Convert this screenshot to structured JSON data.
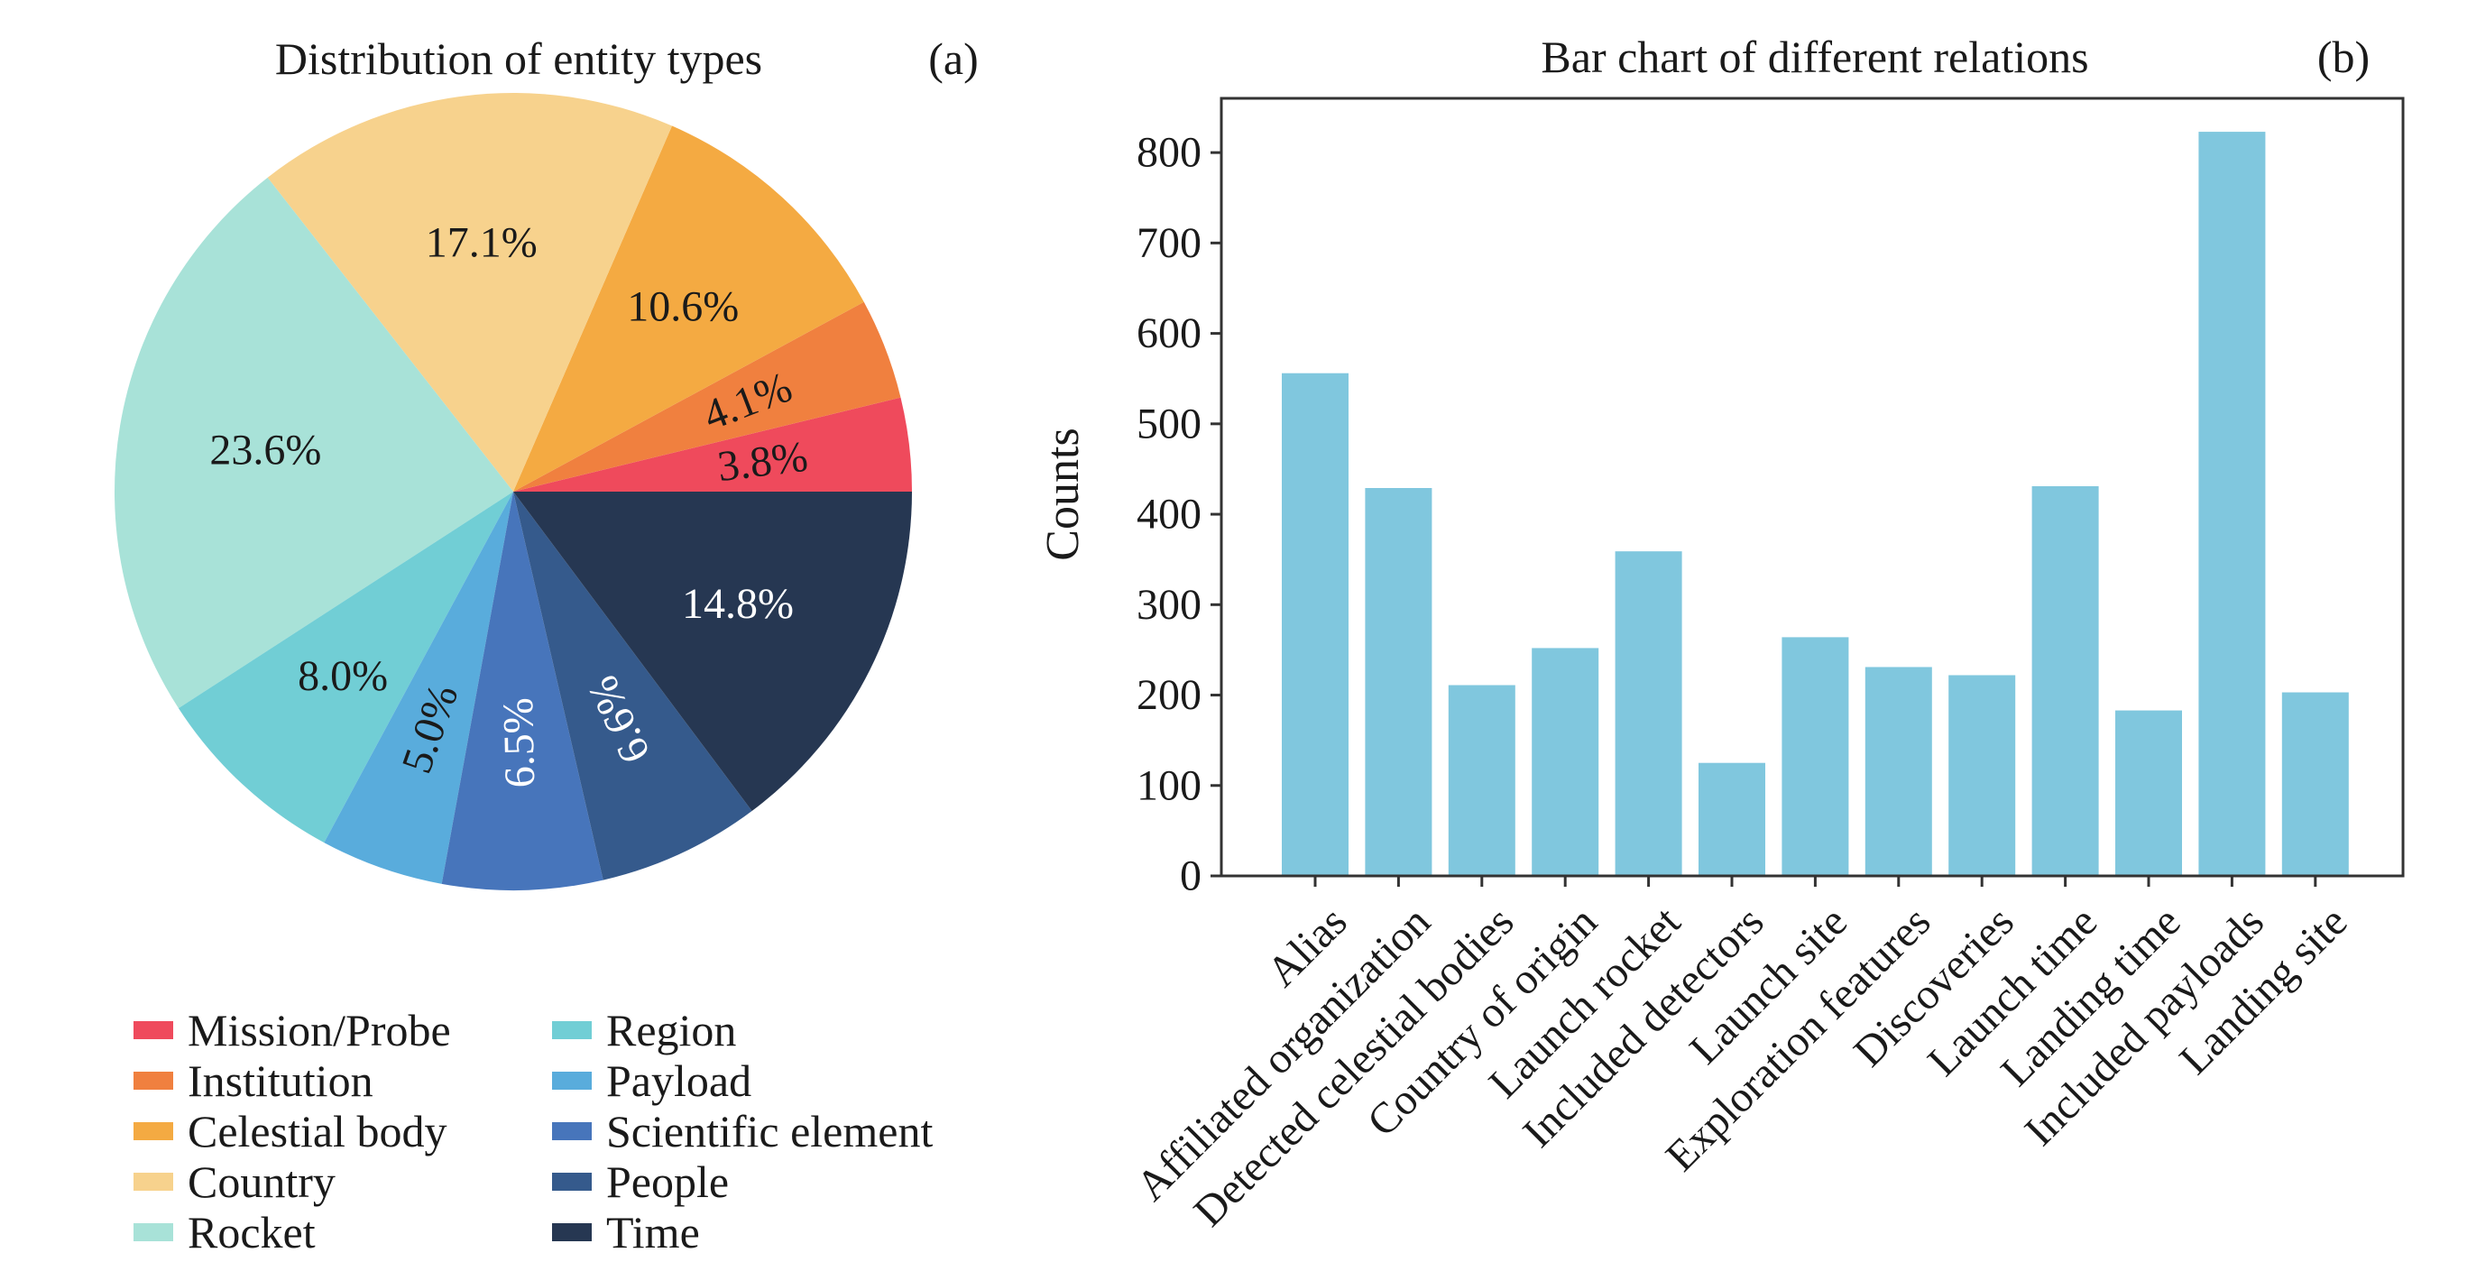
{
  "chart_data": [
    {
      "type": "pie",
      "title": "Distribution of entity types",
      "panel_label": "(a)",
      "slices": [
        {
          "name": "Mission/Probe",
          "value": 3.8,
          "label": "3.8%",
          "color": "#ef4a5c",
          "label_color": "#1a1a1a"
        },
        {
          "name": "Institution",
          "value": 4.1,
          "label": "4.1%",
          "color": "#f0803f",
          "label_color": "#1a1a1a"
        },
        {
          "name": "Celestial body",
          "value": 10.6,
          "label": "10.6%",
          "color": "#f4aa42",
          "label_color": "#1a1a1a"
        },
        {
          "name": "Country",
          "value": 17.1,
          "label": "17.1%",
          "color": "#f7d28d",
          "label_color": "#1a1a1a"
        },
        {
          "name": "Rocket",
          "value": 23.6,
          "label": "23.6%",
          "color": "#a8e2d8",
          "label_color": "#1a1a1a"
        },
        {
          "name": "Region",
          "value": 8.0,
          "label": "8.0%",
          "color": "#71ced5",
          "label_color": "#1a1a1a"
        },
        {
          "name": "Payload",
          "value": 5.0,
          "label": "5.0%",
          "color": "#59acdc",
          "label_color": "#1a1a1a"
        },
        {
          "name": "Scientific element",
          "value": 6.5,
          "label": "6.5%",
          "color": "#4775bb",
          "label_color": "#ffffff"
        },
        {
          "name": "People",
          "value": 6.6,
          "label": "6.6%",
          "color": "#355a8c",
          "label_color": "#ffffff"
        },
        {
          "name": "Time",
          "value": 14.8,
          "label": "14.8%",
          "color": "#263752",
          "label_color": "#ffffff"
        }
      ],
      "legend_order": [
        "Mission/Probe",
        "Institution",
        "Celestial body",
        "Country",
        "Rocket",
        "Region",
        "Payload",
        "Scientific element",
        "People",
        "Time"
      ],
      "legend_placement": "bottom",
      "start_direction": "east",
      "direction": "counterclockwise"
    },
    {
      "type": "bar",
      "title": "Bar chart of different relations",
      "panel_label": "(b)",
      "categories": [
        "Alias",
        "Affiliated organization",
        "Detected celestial bodies",
        "Country of origin",
        "Launch rocket",
        "Included detectors",
        "Launch site",
        "Exploration features",
        "Discoveries",
        "Launch time",
        "Landing time",
        "Included payloads",
        "Landing site"
      ],
      "values": [
        556,
        429,
        211,
        252,
        359,
        125,
        264,
        231,
        222,
        431,
        183,
        823,
        203
      ],
      "xlabel": "",
      "ylabel": "Counts",
      "ylim": [
        0,
        860
      ],
      "yticks": [
        0,
        100,
        200,
        300,
        400,
        500,
        600,
        700,
        800
      ],
      "bar_color": "#80c7de",
      "grid": false
    }
  ]
}
